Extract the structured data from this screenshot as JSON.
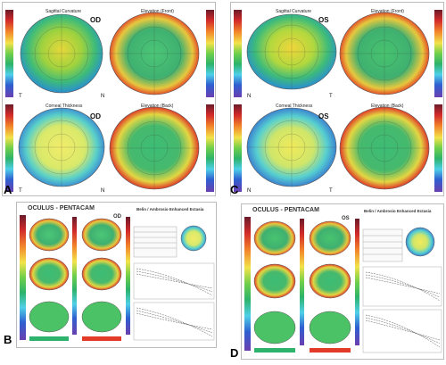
{
  "figure": {
    "panels": [
      {
        "letter": "A",
        "eye": "OD",
        "maps": [
          "Sagittal Curvature",
          "Elevation (Front)",
          "Corneal Thickness",
          "Elevation (Back)"
        ]
      },
      {
        "letter": "C",
        "eye": "OS",
        "maps": [
          "Sagittal Curvature",
          "Elevation (Front)",
          "Corneal Thickness",
          "Elevation (Back)"
        ]
      },
      {
        "letter": "B",
        "eye": "OD",
        "brand": "OCULUS - PENTACAM",
        "title": "Belin / Ambrosio Enhanced Ectasia"
      },
      {
        "letter": "D",
        "eye": "OS",
        "brand": "OCULUS - PENTACAM",
        "title": "Belin / Ambrosio Enhanced Ectasia"
      }
    ],
    "orientation": {
      "temporal": "T",
      "nasal": "N"
    },
    "colors": {
      "map_green": "#2db36b",
      "map_yellow": "#f2e34a",
      "map_red": "#e23b2a",
      "map_blue": "#2f5fd0",
      "map_cyan": "#4fd0e8"
    }
  }
}
